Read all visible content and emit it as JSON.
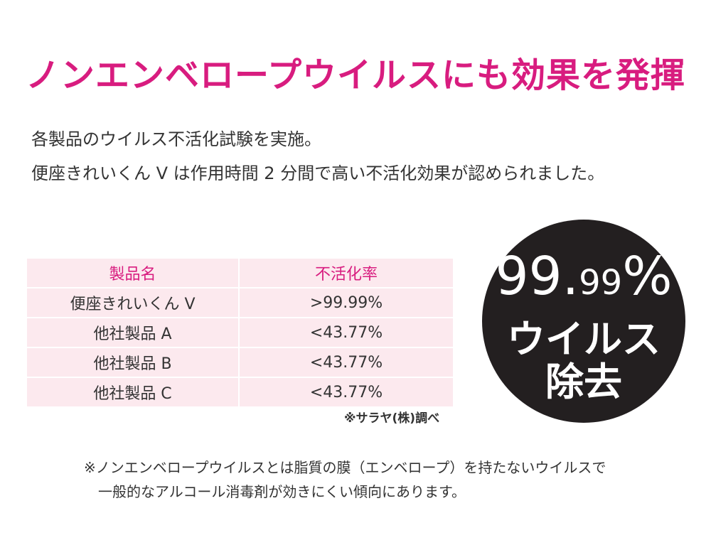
{
  "title": "ノンエンベロープウイルスにも効果を発揮",
  "intro": {
    "line1": "各製品のウイルス不活化試験を実施。",
    "line2": "便座きれいくん V は作用時間 2 分間で高い不活化効果が認められました。"
  },
  "table": {
    "headers": [
      "製品名",
      "不活化率"
    ],
    "rows": [
      [
        "便座きれいくん V",
        ">99.99%"
      ],
      [
        "他社製品 A",
        "<43.77%"
      ],
      [
        "他社製品 B",
        "<43.77%"
      ],
      [
        "他社製品 C",
        "<43.77%"
      ]
    ],
    "source": "※サラヤ(株)調べ"
  },
  "badge": {
    "pct_main": "99.",
    "pct_decimal": "99",
    "pct_sign": "%",
    "line2": "ウイルス",
    "line3": "除去"
  },
  "note": {
    "line1": "※ノンエンベロープウイルスとは脂質の膜（エンベロープ）を持たないウイルスで",
    "line2": "一般的なアルコール消毒剤が効きにくい傾向にあります。"
  },
  "colors": {
    "accent": "#d81c7f",
    "table_bg": "#fce9ee",
    "badge_bg": "#231f20"
  }
}
